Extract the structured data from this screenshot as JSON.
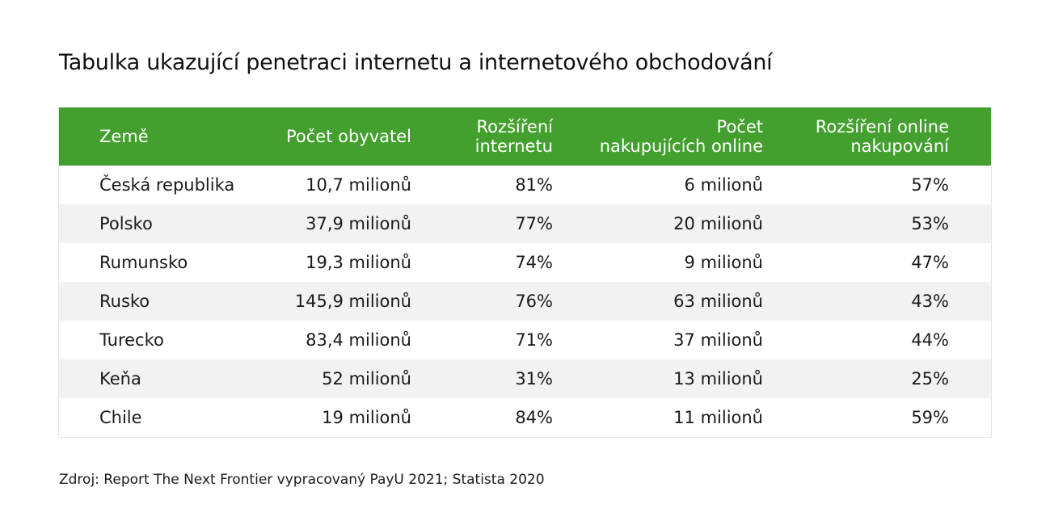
{
  "title": "Tabulka ukazující penetraci internetu a internetového obchodování",
  "table": {
    "headers": [
      "Země",
      "Počet obyvatel",
      "Rozšíření\ninternetu",
      "Počet\nnakupujících online",
      "Rozšíření online\nnakupování"
    ],
    "rows": [
      [
        "Česká republika",
        "10,7 milionů",
        "81%",
        "6 milionů",
        "57%"
      ],
      [
        "Polsko",
        "37,9 milionů",
        "77%",
        "20 milionů",
        "53%"
      ],
      [
        "Rumunsko",
        "19,3 milionů",
        "74%",
        "9 milionů",
        "47%"
      ],
      [
        "Rusko",
        "145,9 milionů",
        "76%",
        "63 milionů",
        "43%"
      ],
      [
        "Turecko",
        "83,4 milionů",
        "71%",
        "37 milionů",
        "44%"
      ],
      [
        "Keňa",
        "52 milionů",
        "31%",
        "13 milionů",
        "25%"
      ],
      [
        "Chile",
        "19 milionů",
        "84%",
        "11 milionů",
        "59%"
      ]
    ]
  },
  "source": "Zdroj: Report The Next Frontier vypracovaný PayU 2021; Statista 2020",
  "colors": {
    "header_bg": "#43a02e",
    "header_text": "#ffffff",
    "alt_row_bg": "#f2f2f2"
  }
}
